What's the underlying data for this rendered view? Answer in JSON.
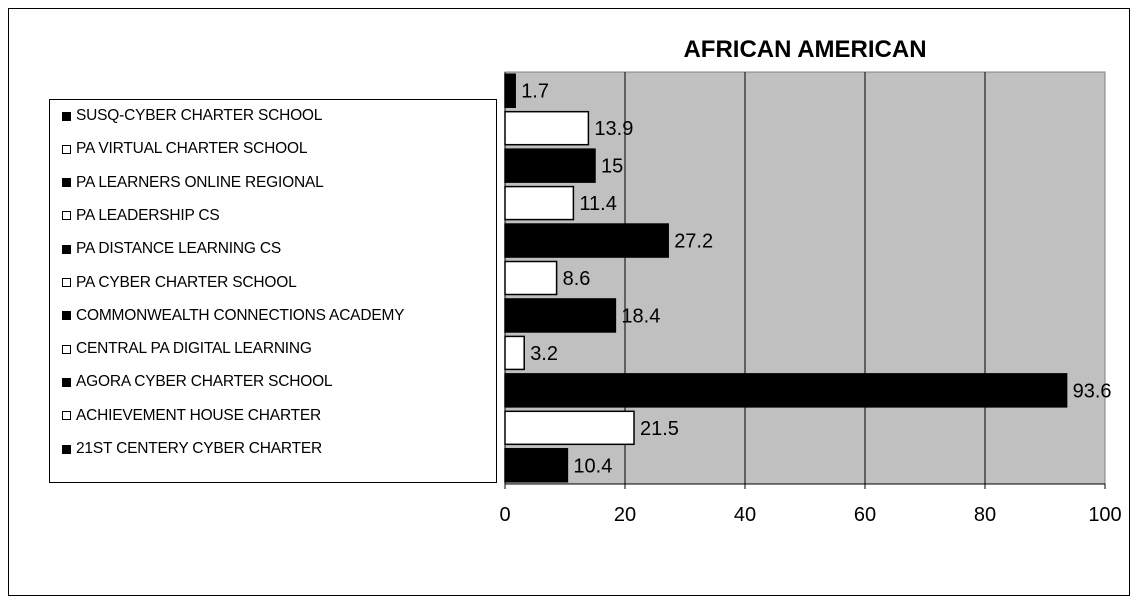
{
  "chart_data": {
    "type": "bar",
    "orientation": "horizontal",
    "title": "AFRICAN AMERICAN",
    "xlim": [
      0,
      100
    ],
    "x_ticks": [
      "0",
      "20",
      "40",
      "60",
      "80",
      "100"
    ],
    "grid": "vertical",
    "legend_placement": "left",
    "plot_background": "#c0c0c0",
    "categories": [
      "SUSQ-CYBER CHARTER SCHOOL",
      "PA VIRTUAL CHARTER SCHOOL",
      "PA LEARNERS ONLINE REGIONAL",
      "PA LEADERSHIP CS",
      "PA DISTANCE LEARNING CS",
      "PA CYBER CHARTER SCHOOL",
      "COMMONWEALTH CONNECTIONS ACADEMY",
      "CENTRAL PA DIGITAL LEARNING",
      "AGORA CYBER CHARTER SCHOOL",
      "ACHIEVEMENT HOUSE CHARTER",
      "21ST CENTERY CYBER CHARTER"
    ],
    "values": [
      1.7,
      13.9,
      15,
      11.4,
      27.2,
      8.6,
      18.4,
      3.2,
      93.6,
      21.5,
      10.4
    ],
    "value_labels": [
      "1.7",
      "13.9",
      "15",
      "11.4",
      "27.2",
      "8.6",
      "18.4",
      "3.2",
      "93.6",
      "21.5",
      "10.4"
    ],
    "colors": [
      "#000000",
      "#ffffff",
      "#000000",
      "#ffffff",
      "#000000",
      "#ffffff",
      "#000000",
      "#ffffff",
      "#000000",
      "#ffffff",
      "#000000"
    ]
  }
}
